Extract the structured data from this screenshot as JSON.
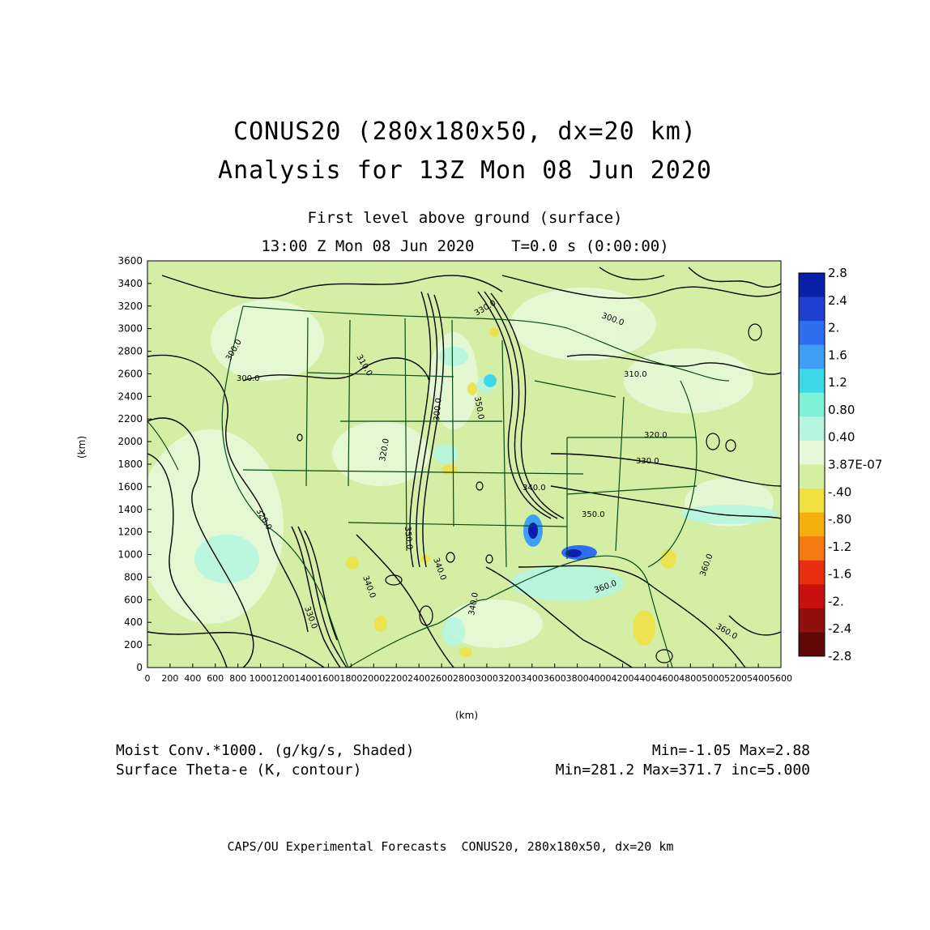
{
  "header": {
    "title_line1": "CONUS20 (280x180x50, dx=20 km)",
    "title_line2": "Analysis for 13Z Mon 08 Jun 2020",
    "level": "First level above ground (surface)",
    "time": "13:00 Z Mon 08 Jun 2020    T=0.0 s (0:00:00)"
  },
  "axes": {
    "y_unit": "(km)",
    "x_unit": "(km)",
    "y_ticks": [
      "3600",
      "3400",
      "3200",
      "3000",
      "2800",
      "2600",
      "2400",
      "2200",
      "2000",
      "1800",
      "1600",
      "1400",
      "1200",
      "1000",
      "800",
      "600",
      "400",
      "200",
      "0"
    ],
    "x_ticks": [
      "0",
      "200",
      "400",
      "600",
      "800",
      "1000",
      "1200",
      "1400",
      "1600",
      "1800",
      "2000",
      "2200",
      "2400",
      "2600",
      "2800",
      "3000",
      "3200",
      "3400",
      "3600",
      "3800",
      "4000",
      "4200",
      "4400",
      "4600",
      "4800",
      "5000",
      "5200",
      "5400",
      "5600"
    ]
  },
  "colorbar": {
    "labels": [
      "2.8",
      "2.4",
      "2.",
      "1.6",
      "1.2",
      "0.80",
      "0.40",
      "3.87E-07",
      "-.40",
      "-.80",
      "-1.2",
      "-1.6",
      "-2.",
      "-2.4",
      "-2.8"
    ],
    "colors": [
      "#0a1fa8",
      "#1f3fd0",
      "#2f6ef0",
      "#3f9ff5",
      "#3fd8e8",
      "#7ef0d8",
      "#b6f5e0",
      "#e6f8d8",
      "#d4f0a0",
      "#f0e040",
      "#f5b010",
      "#f57a10",
      "#e83010",
      "#c81010",
      "#901010",
      "#600808"
    ]
  },
  "contours": {
    "labels": [
      "300.0",
      "300.0",
      "300.0",
      "310.0",
      "320.0",
      "330.0",
      "330.0",
      "340.0",
      "340.0",
      "340.0",
      "350.0",
      "350.0",
      "350.0",
      "360.0",
      "360.0",
      "360.0",
      "320.0",
      "310.0",
      "300.0",
      "320.0",
      "330.0",
      "340.0"
    ]
  },
  "footer": {
    "shaded_field": "Moist Conv.*1000. (g/kg/s, Shaded)",
    "shaded_range": "Min=-1.05 Max=2.88",
    "contour_field": "Surface Theta-e (K, contour)",
    "contour_range": "Min=281.2 Max=371.7 inc=5.000",
    "credit": "CAPS/OU Experimental Forecasts  CONUS20, 280x180x50, dx=20 km"
  }
}
